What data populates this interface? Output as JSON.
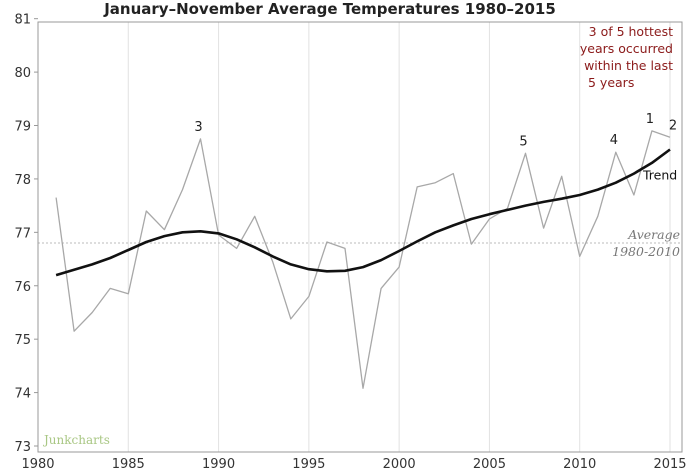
{
  "chart_data": {
    "type": "line",
    "title": "January–November Average Temperatures 1980–2015",
    "xlabel": "",
    "ylabel": "",
    "xlim": [
      1980,
      2015
    ],
    "ylim": [
      73,
      81.2
    ],
    "xticks": [
      1980,
      1985,
      1990,
      1995,
      2000,
      2005,
      2010,
      2015
    ],
    "yticks": [
      73,
      74,
      75,
      76,
      77,
      78,
      79,
      80,
      81
    ],
    "grid": "vertical",
    "series": [
      {
        "name": "",
        "color": "#a8a8a8",
        "x": [
          1981,
          1982,
          1983,
          1984,
          1985,
          1986,
          1987,
          1988,
          1989,
          1990,
          1991,
          1992,
          1993,
          1994,
          1995,
          1996,
          1997,
          1998,
          1999,
          2000,
          2001,
          2002,
          2003,
          2004,
          2005,
          2006,
          2007,
          2008,
          2009,
          2010,
          2011,
          2012,
          2013,
          2014,
          2015
        ],
        "y": [
          77.65,
          75.15,
          75.5,
          75.95,
          75.85,
          77.4,
          77.05,
          77.8,
          78.75,
          76.95,
          76.7,
          77.3,
          76.45,
          75.38,
          75.8,
          76.82,
          76.7,
          74.08,
          75.95,
          76.35,
          77.85,
          77.93,
          78.1,
          76.78,
          77.25,
          77.45,
          78.48,
          77.08,
          78.05,
          76.55,
          77.3,
          78.5,
          77.7,
          78.9,
          78.78
        ]
      },
      {
        "name": "Trend",
        "color": "#111111",
        "x": [
          1981,
          1982,
          1983,
          1984,
          1985,
          1986,
          1987,
          1988,
          1989,
          1990,
          1991,
          1992,
          1993,
          1994,
          1995,
          1996,
          1997,
          1998,
          1999,
          2000,
          2001,
          2002,
          2003,
          2004,
          2005,
          2006,
          2007,
          2008,
          2009,
          2010,
          2011,
          2012,
          2013,
          2014,
          2015
        ],
        "y": [
          76.2,
          76.3,
          76.4,
          76.52,
          76.67,
          76.82,
          76.93,
          77.0,
          77.02,
          76.98,
          76.87,
          76.72,
          76.55,
          76.4,
          76.31,
          76.27,
          76.28,
          76.35,
          76.48,
          76.65,
          76.83,
          77.0,
          77.13,
          77.25,
          77.34,
          77.42,
          77.5,
          77.57,
          77.63,
          77.7,
          77.8,
          77.93,
          78.1,
          78.3,
          78.55
        ]
      }
    ],
    "average": {
      "value": 76.8,
      "label_line1": "Average",
      "label_line2": "1980-2010"
    },
    "trend_label": "Trend",
    "rank_labels": [
      {
        "text": "3",
        "x": 1989
      },
      {
        "text": "5",
        "x": 2007
      },
      {
        "text": "4",
        "x": 2012
      },
      {
        "text": "1",
        "x": 2014
      },
      {
        "text": "2",
        "x": 2015
      }
    ],
    "annotation": [
      "3 of 5 hottest",
      "years occurred",
      "within the last",
      "5 years"
    ],
    "annotation_color": "#8b1a1a",
    "watermark": "Junkcharts"
  }
}
